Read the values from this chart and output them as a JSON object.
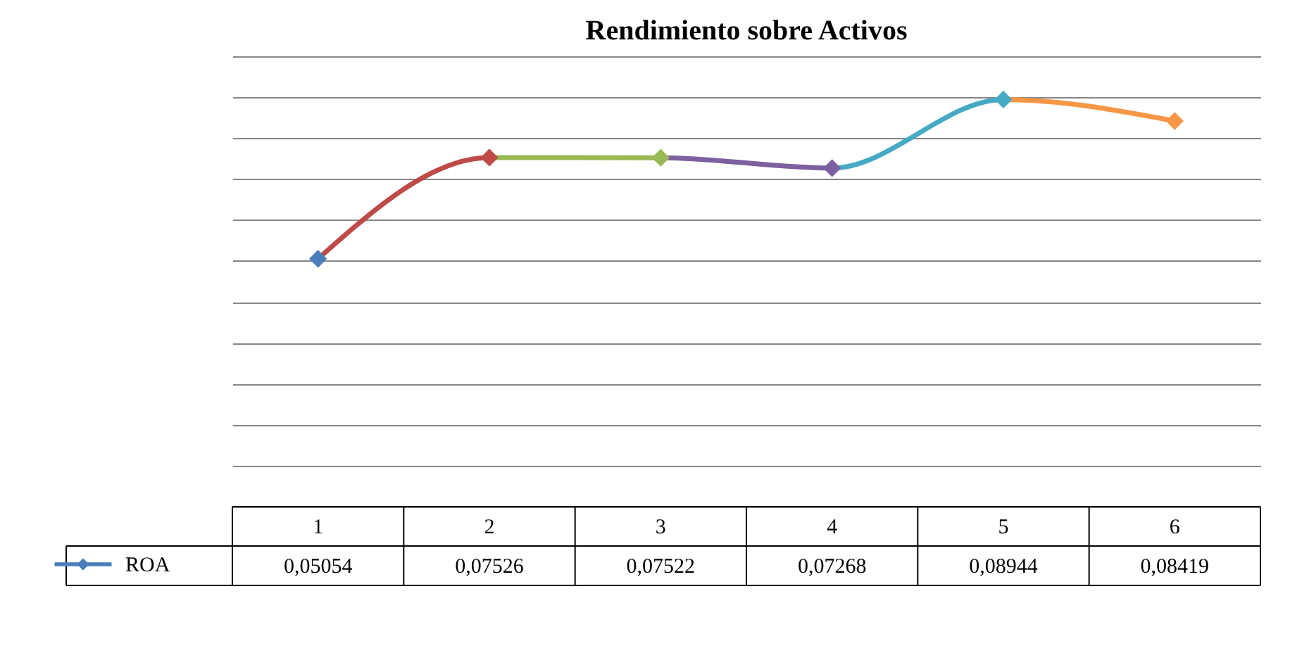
{
  "chart_data": {
    "type": "line",
    "title": "Rendimiento sobre Activos",
    "categories": [
      "1",
      "2",
      "3",
      "4",
      "5",
      "6"
    ],
    "series": [
      {
        "name": "ROA",
        "color": "#4a7ebb",
        "colors": [
          "#4a7ebb",
          "#be4b48",
          "#98b954",
          "#7d60a0",
          "#46aac5",
          "#f79646"
        ],
        "values": [
          0.05054,
          0.07526,
          0.07522,
          0.07268,
          0.08944,
          0.08419
        ],
        "value_labels": [
          "0,05054",
          "0,07526",
          "0,07522",
          "0,07268",
          "0,08944",
          "0,08419"
        ]
      }
    ],
    "grid": "y",
    "tick_labels": "x",
    "legend": "bottom",
    "marker": "diamond",
    "line_style": "solid"
  }
}
